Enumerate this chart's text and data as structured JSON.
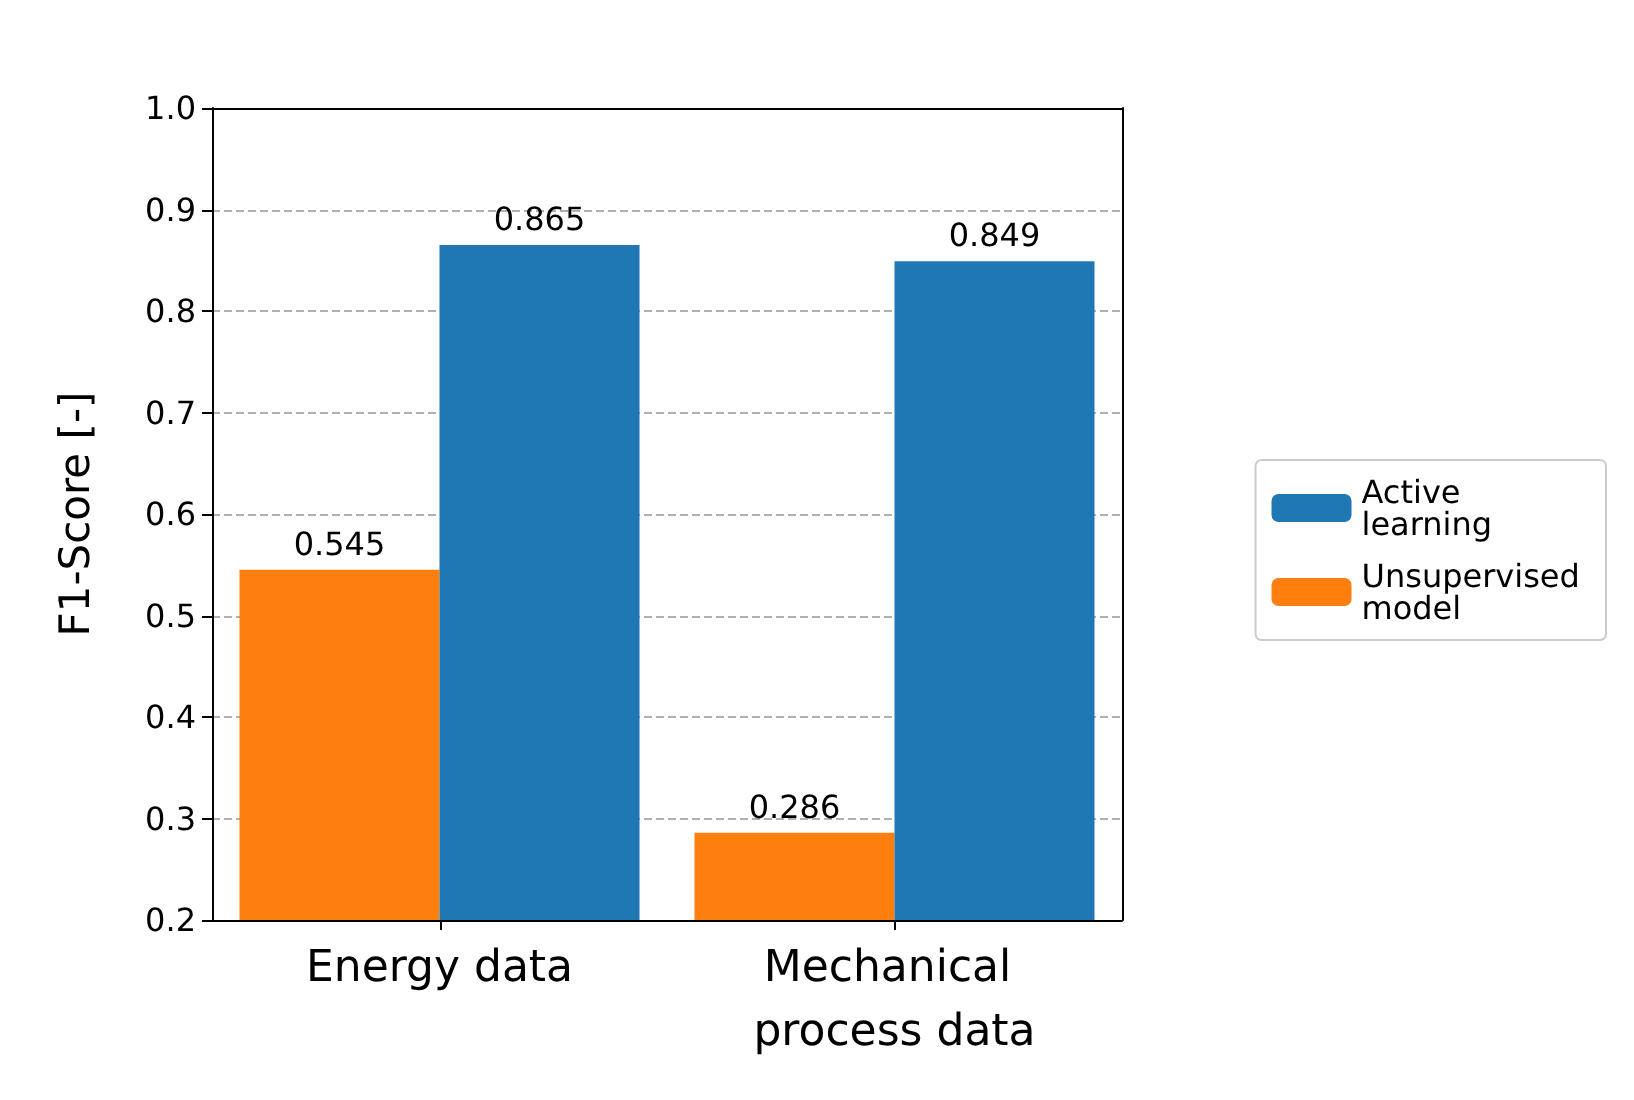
{
  "chart_data": {
    "type": "bar",
    "ylabel": "F1-Score [-]",
    "categories": [
      "Energy data",
      "Mechanical process data"
    ],
    "series": [
      {
        "name": "Unsupervised model",
        "color": "#ff7f0e",
        "values": [
          0.545,
          0.286
        ]
      },
      {
        "name": "Active learning",
        "color": "#1f77b4",
        "values": [
          0.865,
          0.849
        ]
      }
    ],
    "ylim": [
      0.2,
      1.0
    ],
    "yticks": [
      0.2,
      0.3,
      0.4,
      0.5,
      0.6,
      0.7,
      0.8,
      0.9,
      {
        "value": 1.0,
        "label": "1.0"
      }
    ],
    "grid": "y",
    "legend": "right",
    "data_labels": true
  }
}
